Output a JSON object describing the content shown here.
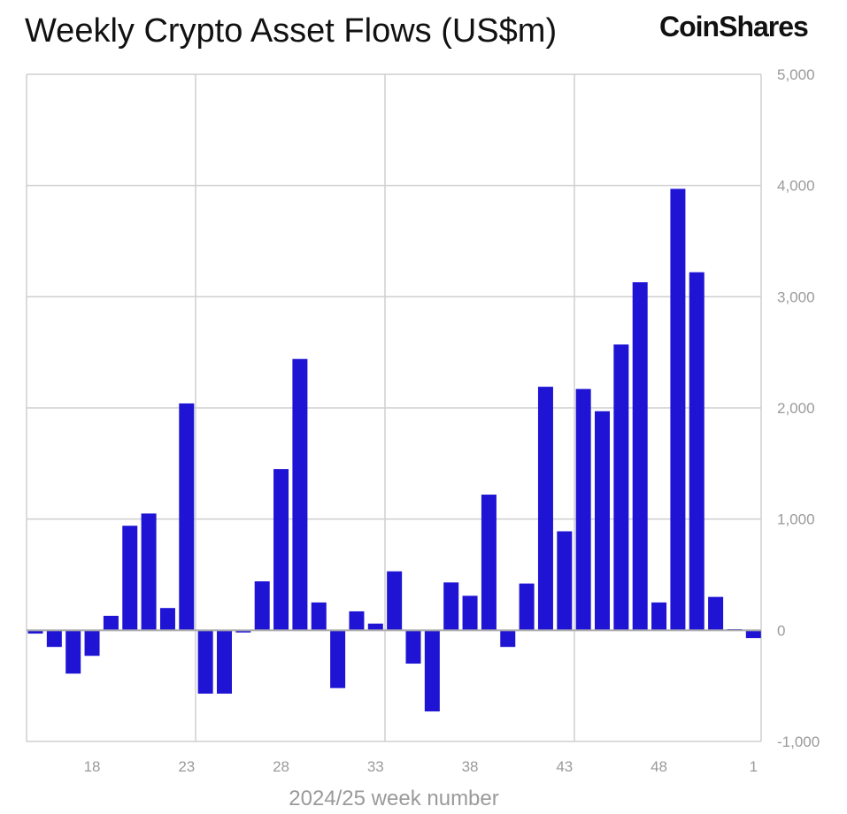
{
  "chart_data": {
    "type": "bar",
    "title": "Weekly Crypto Asset Flows (US$m)",
    "logo": "CoinShares",
    "xlabel": "2024/25 week number",
    "ylabel": "",
    "ylim": [
      -1000,
      5000
    ],
    "yticks": [
      -1000,
      0,
      1000,
      2000,
      3000,
      4000,
      5000
    ],
    "ytick_labels": [
      "-1,000",
      "0",
      "1,000",
      "2,000",
      "3,000",
      "4,000",
      "5,000"
    ],
    "xtick_labels": [
      "18",
      "23",
      "28",
      "33",
      "38",
      "43",
      "48",
      "1"
    ],
    "grid": true,
    "bar_color": "#1f14d4",
    "categories": [
      "15",
      "16",
      "17",
      "18",
      "19",
      "20",
      "21",
      "22",
      "23",
      "24",
      "25",
      "26",
      "27",
      "28",
      "29",
      "30",
      "31",
      "32",
      "33",
      "34",
      "35",
      "36",
      "37",
      "38",
      "39",
      "40",
      "41",
      "42",
      "43",
      "44",
      "45",
      "46",
      "47",
      "48",
      "49",
      "50",
      "51",
      "52",
      "1"
    ],
    "values": [
      -30,
      -150,
      -390,
      -230,
      130,
      940,
      1050,
      200,
      2040,
      -570,
      -570,
      -20,
      440,
      1450,
      2440,
      250,
      -520,
      170,
      60,
      530,
      -300,
      -730,
      430,
      310,
      1220,
      -150,
      420,
      2190,
      890,
      2170,
      1970,
      2570,
      3130,
      250,
      3970,
      3220,
      300,
      10,
      -70
    ]
  }
}
